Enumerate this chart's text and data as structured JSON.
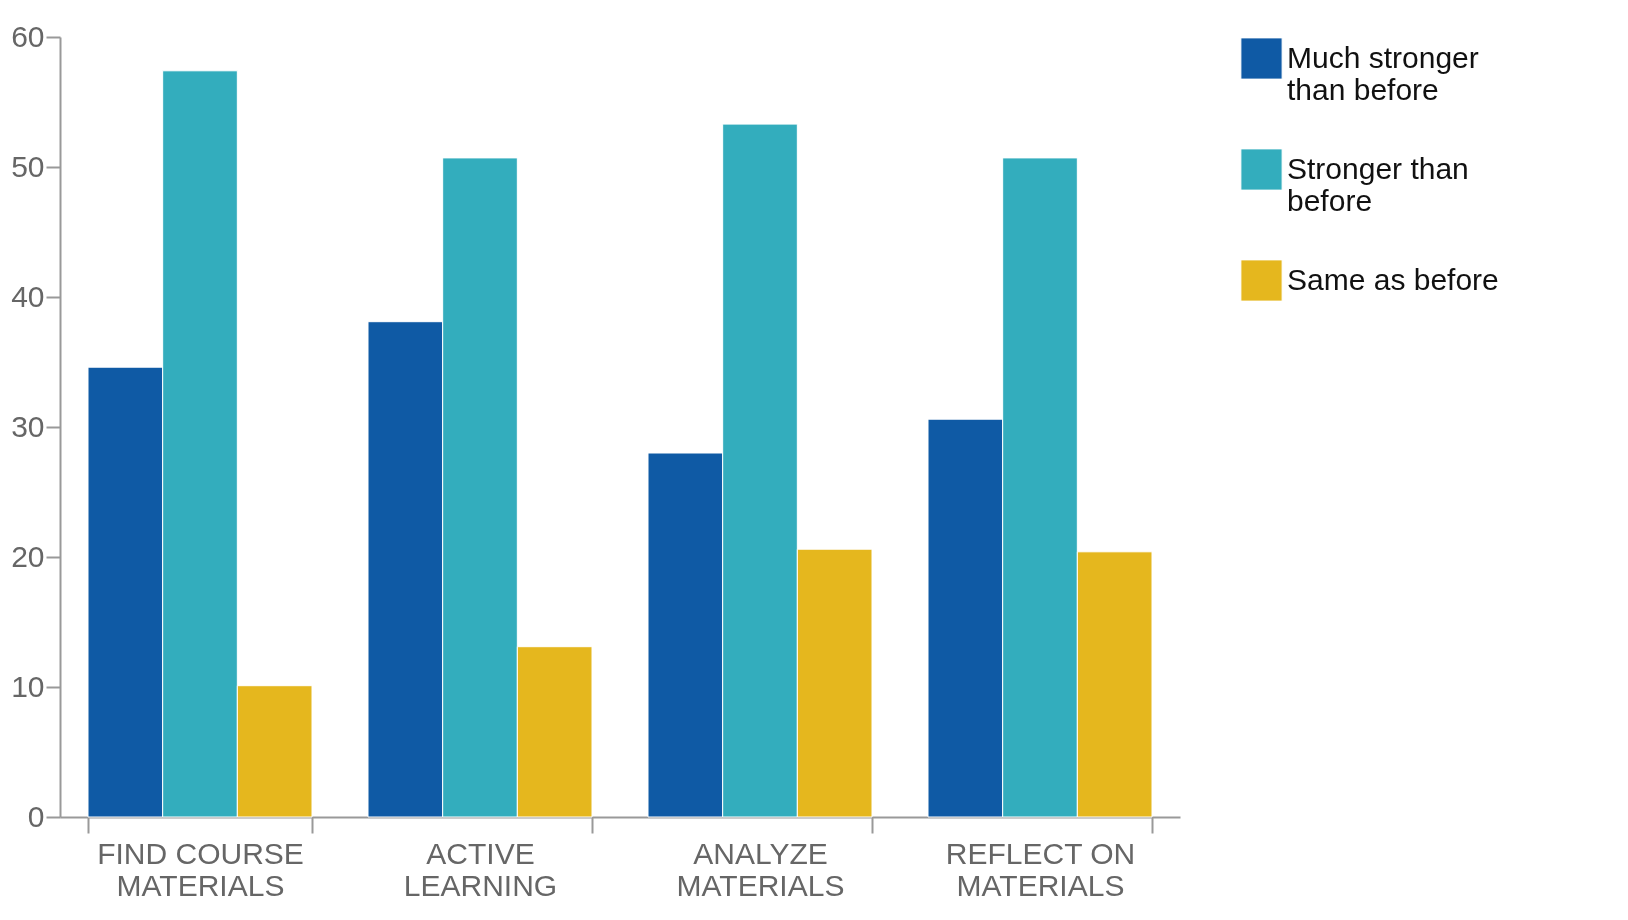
{
  "chart_data": {
    "type": "bar",
    "categories": [
      "FIND COURSE MATERIALS",
      "ACTIVE LEARNING",
      "ANALYZE MATERIALS",
      "REFLECT ON MATERIALS"
    ],
    "series": [
      {
        "name": "Much stronger than before",
        "color": "#0f5aa5",
        "values": [
          34.6,
          38.1,
          28.0,
          30.6
        ]
      },
      {
        "name": "Stronger than before",
        "color": "#33adbd",
        "values": [
          57.4,
          50.7,
          53.3,
          50.7
        ]
      },
      {
        "name": "Same as before",
        "color": "#e5b71e",
        "values": [
          10.1,
          13.1,
          20.6,
          20.4
        ]
      }
    ],
    "ylim": [
      0,
      60
    ],
    "yticks": [
      0,
      10,
      20,
      30,
      40,
      50,
      60
    ],
    "grid": false,
    "legend": "top right"
  }
}
